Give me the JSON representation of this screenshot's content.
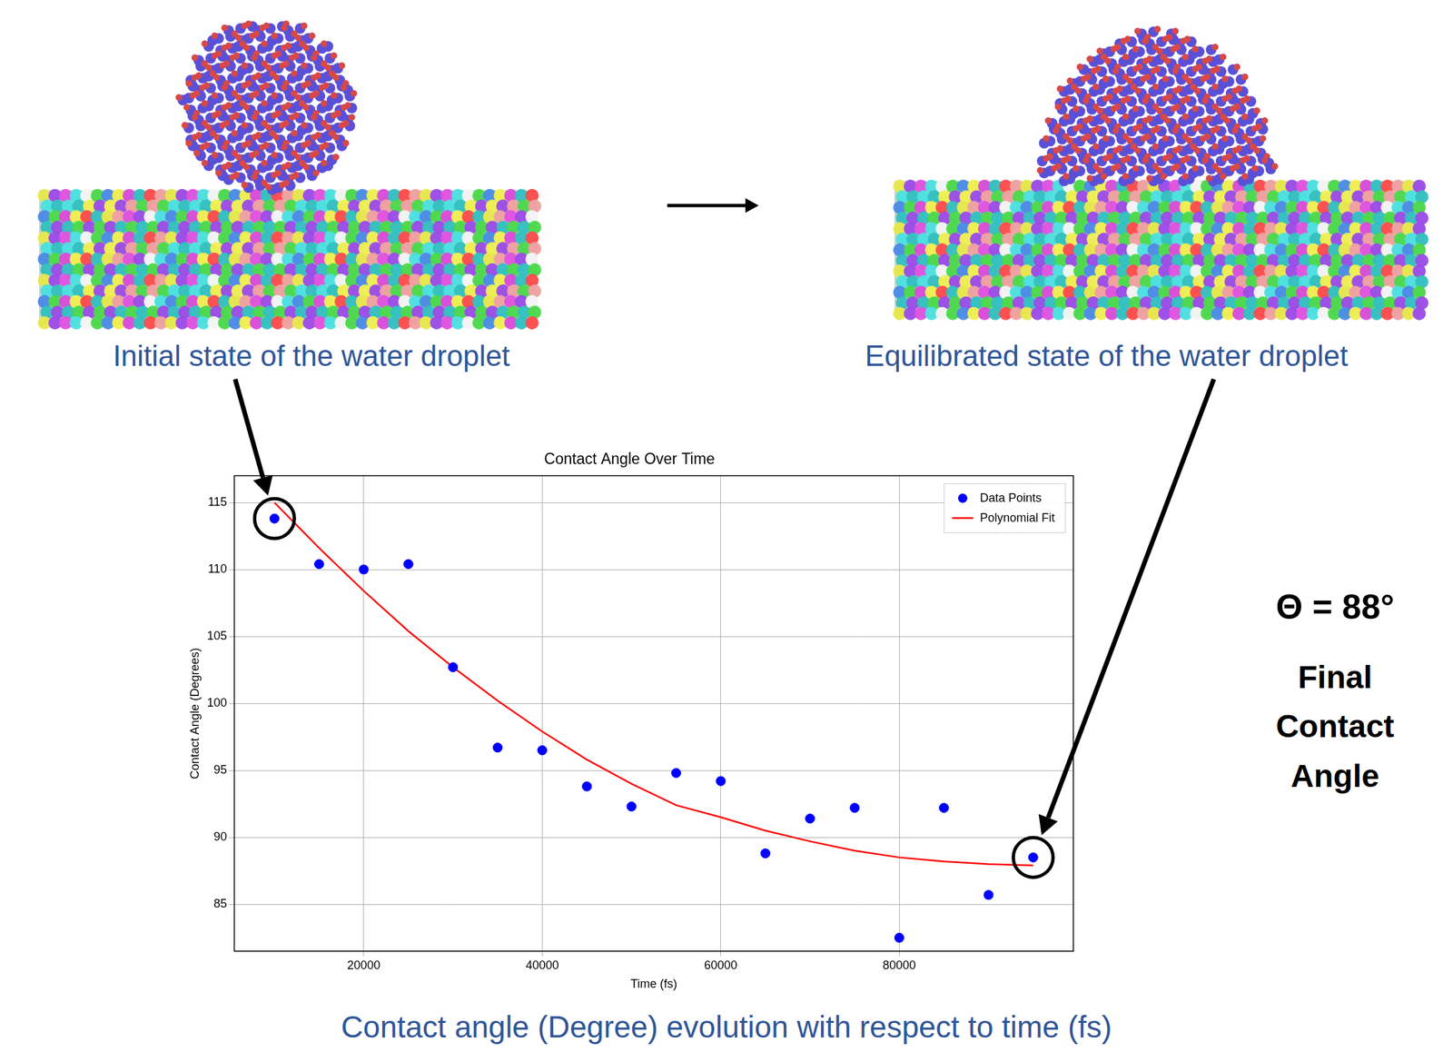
{
  "chart_data": {
    "type": "scatter",
    "title": "Contact Angle Over Time",
    "x_label": "Time (fs)",
    "y_label": "Contact Angle (Degrees)",
    "x": [
      10000,
      15000,
      20000,
      25000,
      30000,
      35000,
      40000,
      45000,
      50000,
      55000,
      60000,
      65000,
      70000,
      75000,
      80000,
      85000,
      90000,
      95000
    ],
    "series": [
      {
        "name": "Data Points",
        "type": "scatter",
        "color": "#0000ff",
        "marker": "circle",
        "values": [
          113.8,
          110.4,
          110.0,
          110.4,
          102.7,
          96.7,
          96.5,
          93.8,
          92.3,
          94.8,
          94.2,
          88.8,
          91.4,
          92.2,
          82.5,
          92.2,
          85.7,
          88.5
        ]
      },
      {
        "name": "Polynomial Fit",
        "type": "line",
        "color": "#ff0000",
        "line_style": "solid",
        "values": [
          115.0,
          111.6,
          108.4,
          105.4,
          102.7,
          100.2,
          97.9,
          95.8,
          94.0,
          92.4,
          91.5,
          90.5,
          89.7,
          89.0,
          88.5,
          88.2,
          88.0,
          87.9
        ]
      }
    ],
    "xlim": [
      5500,
      99500
    ],
    "xticks": [
      20000,
      40000,
      60000,
      80000
    ],
    "ylim": [
      81.5,
      117
    ],
    "yticks": [
      85,
      90,
      95,
      100,
      105,
      110,
      115
    ],
    "grid": true,
    "legend": "upper right",
    "annotations": [
      "Θ = 88°",
      "Final Contact Angle"
    ]
  },
  "figure": {
    "panels": [
      {
        "label": "Initial state of the water droplet"
      },
      {
        "label": "Equilibrated state of the water droplet"
      }
    ],
    "caption": "Contact angle (Degree) evolution with respect to time (fs)"
  }
}
